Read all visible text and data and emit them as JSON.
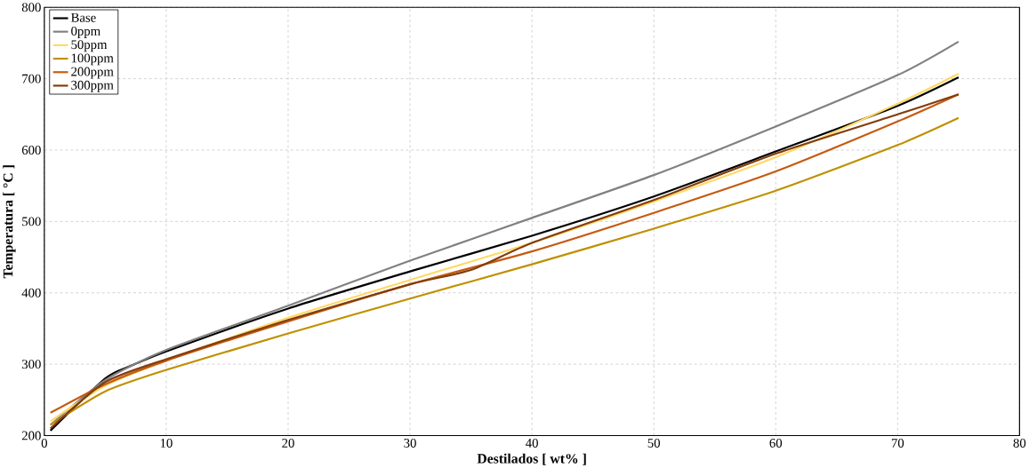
{
  "chart_data": {
    "type": "line",
    "xlabel": "**Destilados [ wt% ]**",
    "ylabel": "**Temperatura [ °C ]**",
    "xlim": [
      0,
      80
    ],
    "xticks": [
      0,
      10,
      20,
      30,
      40,
      50,
      60,
      70,
      80
    ],
    "ylim": [
      200,
      800
    ],
    "yticks": [
      200,
      300,
      400,
      500,
      600,
      700,
      800
    ],
    "grid": true,
    "legend": "top left",
    "marker": "none",
    "line_style": "solid",
    "series": [
      {
        "name": "Base",
        "color": "#000000",
        "x": [
          0.5,
          5,
          7,
          10,
          20,
          30,
          40,
          50,
          60,
          70,
          75
        ],
        "values": [
          207,
          280,
          297,
          318,
          378,
          430,
          480,
          535,
          598,
          662,
          702
        ]
      },
      {
        "name": "0ppm",
        "color": "#808080",
        "x": [
          0.5,
          5,
          10,
          20,
          30,
          40,
          50,
          60,
          70,
          75
        ],
        "values": [
          215,
          278,
          320,
          382,
          445,
          505,
          565,
          633,
          705,
          752
        ]
      },
      {
        "name": "50ppm",
        "color": "#ffd966",
        "x": [
          0.5,
          5,
          10,
          20,
          30,
          40,
          50,
          60,
          70,
          75
        ],
        "values": [
          220,
          270,
          305,
          365,
          418,
          470,
          528,
          590,
          665,
          707
        ]
      },
      {
        "name": "100ppm",
        "color": "#bf9000",
        "x": [
          0.5,
          5,
          10,
          20,
          30,
          40,
          50,
          60,
          70,
          75
        ],
        "values": [
          215,
          262,
          292,
          343,
          392,
          440,
          490,
          543,
          607,
          645
        ]
      },
      {
        "name": "200ppm",
        "color": "#c55a11",
        "x": [
          0.5,
          5,
          10,
          20,
          30,
          40,
          50,
          60,
          70,
          75
        ],
        "values": [
          232,
          272,
          305,
          360,
          412,
          458,
          512,
          570,
          640,
          678
        ]
      },
      {
        "name": "300ppm",
        "color": "#843c0c",
        "x": [
          0.5,
          5,
          10,
          20,
          30,
          35,
          40,
          50,
          60,
          70,
          75
        ],
        "values": [
          210,
          275,
          307,
          362,
          412,
          432,
          470,
          530,
          595,
          650,
          678
        ]
      }
    ]
  }
}
